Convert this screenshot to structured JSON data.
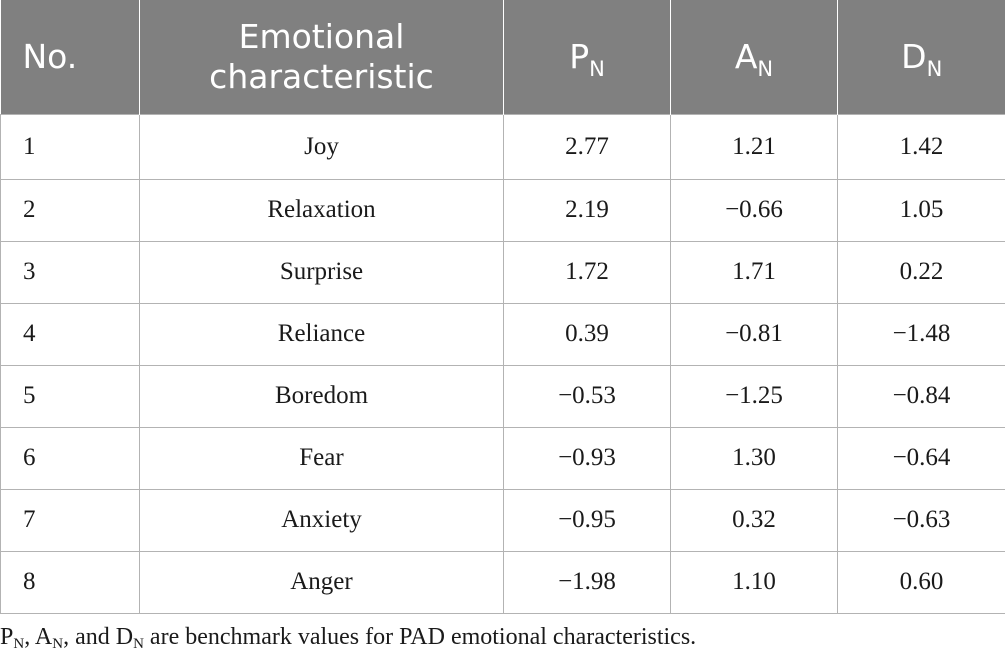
{
  "table": {
    "headers": {
      "no": "No.",
      "emotional_line1": "Emotional",
      "emotional_line2": "characteristic",
      "p_main": "P",
      "p_sub": "N",
      "a_main": "A",
      "a_sub": "N",
      "d_main": "D",
      "d_sub": "N"
    },
    "rows": [
      {
        "no": "1",
        "emotion": "Joy",
        "p": "2.77",
        "a": "1.21",
        "d": "1.42"
      },
      {
        "no": "2",
        "emotion": "Relaxation",
        "p": "2.19",
        "a": "−0.66",
        "d": "1.05"
      },
      {
        "no": "3",
        "emotion": "Surprise",
        "p": "1.72",
        "a": "1.71",
        "d": "0.22"
      },
      {
        "no": "4",
        "emotion": "Reliance",
        "p": "0.39",
        "a": "−0.81",
        "d": "−1.48"
      },
      {
        "no": "5",
        "emotion": "Boredom",
        "p": "−0.53",
        "a": "−1.25",
        "d": "−0.84"
      },
      {
        "no": "6",
        "emotion": "Fear",
        "p": "−0.93",
        "a": "1.30",
        "d": "−0.64"
      },
      {
        "no": "7",
        "emotion": "Anxiety",
        "p": "−0.95",
        "a": "0.32",
        "d": "−0.63"
      },
      {
        "no": "8",
        "emotion": "Anger",
        "p": "−1.98",
        "a": "1.10",
        "d": "0.60"
      }
    ]
  },
  "footnote": {
    "p": "P",
    "p_sub": "N",
    "sep1": ", ",
    "a": "A",
    "a_sub": "N",
    "sep2": ", and ",
    "d": "D",
    "d_sub": "N",
    "rest": " are benchmark values for PAD emotional characteristics."
  },
  "colors": {
    "header_bg": "#808080",
    "header_text": "#ffffff",
    "grid": "#b3b3b3"
  }
}
